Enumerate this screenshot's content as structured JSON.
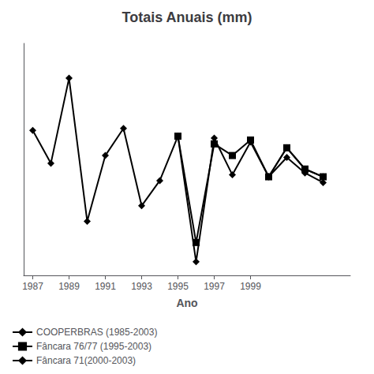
{
  "chart_data": {
    "type": "line",
    "title": "Totais Anuais (mm)",
    "xlabel": "Ano",
    "x": [
      1987,
      1988,
      1989,
      1990,
      1991,
      1992,
      1993,
      1994,
      1995,
      1996,
      1997,
      1998,
      1999,
      2000,
      2001,
      2002,
      2003
    ],
    "xlim": [
      1986.5,
      2004.5
    ],
    "xticks": [
      1987,
      1989,
      1991,
      1993,
      1995,
      1997,
      1999
    ],
    "ylim": [
      800,
      2000
    ],
    "yticks": [],
    "grid": false,
    "tick_labels": "x",
    "legend": "lower left",
    "series": [
      {
        "name": "COOPERBRAS (1985-2003)",
        "color": "#000000",
        "marker": "diamond",
        "values": [
          1550,
          1380,
          1820,
          1080,
          1420,
          1560,
          1160,
          1290,
          1520,
          870,
          1510,
          1320,
          1490,
          1310,
          1410,
          1330,
          1280
        ]
      },
      {
        "name": "Fâncara 76/77 (1995-2003)",
        "color": "#000000",
        "marker": "square",
        "values": [
          null,
          null,
          null,
          null,
          null,
          null,
          null,
          null,
          1520,
          970,
          1480,
          1420,
          1500,
          1310,
          1460,
          1350,
          1310
        ]
      },
      {
        "name": "Fâncara 71(2000-2003)",
        "color": "#000000",
        "marker": "diamond",
        "values": [
          null,
          null,
          null,
          null,
          null,
          null,
          null,
          null,
          null,
          null,
          null,
          null,
          null,
          1310,
          1460,
          1350,
          1310
        ]
      }
    ]
  }
}
